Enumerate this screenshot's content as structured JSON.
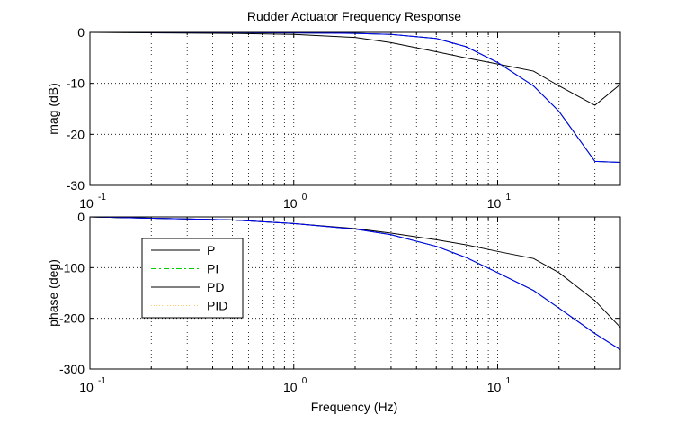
{
  "figure": {
    "title": "Rudder Actuator Frequency Response",
    "xlabel": "Frequency (Hz)"
  },
  "colors": {
    "background": "#ffffff",
    "axes": "#000000",
    "grid": "#000000"
  },
  "chart_data": [
    {
      "type": "line",
      "title": "Rudder Actuator Frequency Response",
      "xlabel": "",
      "ylabel": "mag (dB)",
      "xscale": "log",
      "xlim": [
        0.1,
        40
      ],
      "ylim": [
        -30,
        0
      ],
      "yticks": [
        0,
        -10,
        -20,
        -30
      ],
      "xticks": [
        {
          "value": 0.1,
          "base": "10",
          "exp": "-1"
        },
        {
          "value": 1,
          "base": "10",
          "exp": "0"
        },
        {
          "value": 10,
          "base": "10",
          "exp": "1"
        }
      ],
      "grid": true,
      "series": [
        {
          "name": "P",
          "color": "#000000",
          "dash": "",
          "x": [
            0.1,
            0.5,
            1,
            2,
            3,
            5,
            7,
            10,
            15,
            20,
            30,
            40
          ],
          "y": [
            0,
            -0.05,
            -0.1,
            -0.2,
            -0.4,
            -1.2,
            -2.8,
            -5.9,
            -10.5,
            -15.5,
            -25.3,
            -25.5
          ]
        },
        {
          "name": "PI",
          "color": "#00cc00",
          "dash": "6 3 2 3",
          "x": [
            0.1,
            0.5,
            1,
            2,
            3,
            5,
            7,
            10,
            15,
            20,
            30,
            40
          ],
          "y": [
            0,
            -0.05,
            -0.1,
            -0.2,
            -0.4,
            -1.2,
            -2.8,
            -5.9,
            -10.5,
            -15.5,
            -25.3,
            -25.5
          ]
        },
        {
          "name": "PD",
          "color": "#000000",
          "dash": "",
          "x": [
            0.1,
            0.5,
            1,
            2,
            3,
            5,
            7,
            10,
            15,
            20,
            30,
            40
          ],
          "y": [
            0,
            -0.2,
            -0.4,
            -1.0,
            -2.0,
            -3.8,
            -5.0,
            -6.2,
            -7.6,
            -10.5,
            -14.3,
            -10.2
          ]
        },
        {
          "name": "PID",
          "color": "#0000ff",
          "dash": "",
          "x": [
            0.1,
            0.5,
            1,
            2,
            3,
            5,
            7,
            10,
            15,
            20,
            30,
            40
          ],
          "y": [
            0,
            -0.05,
            -0.1,
            -0.2,
            -0.4,
            -1.2,
            -2.8,
            -5.9,
            -10.5,
            -15.5,
            -25.3,
            -25.5
          ]
        }
      ]
    },
    {
      "type": "line",
      "title": "",
      "xlabel": "Frequency (Hz)",
      "ylabel": "phase (deg)",
      "xscale": "log",
      "xlim": [
        0.1,
        40
      ],
      "ylim": [
        -300,
        0
      ],
      "yticks": [
        0,
        -100,
        -200,
        -300
      ],
      "xticks": [
        {
          "value": 0.1,
          "base": "10",
          "exp": "-1"
        },
        {
          "value": 1,
          "base": "10",
          "exp": "0"
        },
        {
          "value": 10,
          "base": "10",
          "exp": "1"
        }
      ],
      "grid": true,
      "legend": {
        "placement": "center-left",
        "entries": [
          "P",
          "PI",
          "PD",
          "PID"
        ]
      },
      "series": [
        {
          "name": "P",
          "color": "#000000",
          "dash": "",
          "x": [
            0.1,
            0.5,
            1,
            2,
            3,
            5,
            7,
            10,
            15,
            20,
            30,
            40
          ],
          "y": [
            0,
            -6,
            -13,
            -24,
            -35,
            -58,
            -80,
            -110,
            -145,
            -180,
            -230,
            -262
          ]
        },
        {
          "name": "PI",
          "color": "#00cc00",
          "dash": "6 3 2 3",
          "x": [
            0.1,
            0.5,
            1,
            2,
            3,
            5,
            7,
            10,
            15,
            20,
            30,
            40
          ],
          "y": [
            0,
            -6,
            -13,
            -24,
            -35,
            -58,
            -80,
            -110,
            -145,
            -180,
            -230,
            -262
          ]
        },
        {
          "name": "PD",
          "color": "#000000",
          "dash": "",
          "x": [
            0.1,
            0.5,
            1,
            2,
            3,
            5,
            7,
            10,
            15,
            20,
            30,
            40
          ],
          "y": [
            0,
            -6,
            -13,
            -23,
            -32,
            -45,
            -55,
            -68,
            -82,
            -110,
            -165,
            -218
          ]
        },
        {
          "name": "PID",
          "color": "#0000ff",
          "dash": "",
          "x": [
            0.1,
            0.5,
            1,
            2,
            3,
            5,
            7,
            10,
            15,
            20,
            30,
            40
          ],
          "y": [
            0,
            -6,
            -13,
            -24,
            -35,
            -58,
            -80,
            -110,
            -145,
            -180,
            -230,
            -262
          ]
        }
      ]
    }
  ]
}
